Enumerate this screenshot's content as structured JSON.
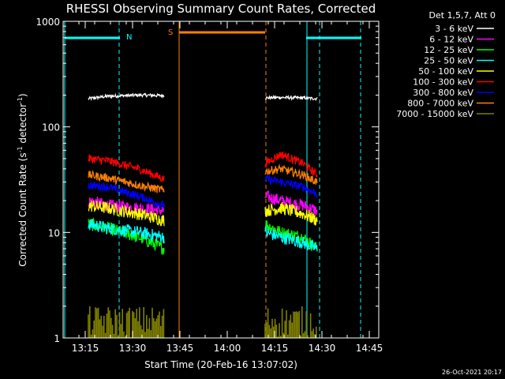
{
  "chart_data": {
    "type": "line",
    "title": "RHESSI Observing Summary Count Rates, Corrected",
    "xlabel": "Start Time (20-Feb-16 13:07:02)",
    "ylabel_main": "Corrected Count Rate (s",
    "ylabel_sup1": "-1",
    "ylabel_mid": " detector",
    "ylabel_sup2": "-1",
    "ylabel_end": ")",
    "yscale": "log",
    "ylim": [
      1,
      1000
    ],
    "yticks": [
      {
        "v": 1,
        "label": "1"
      },
      {
        "v": 10,
        "label": "10"
      },
      {
        "v": 100,
        "label": "100"
      },
      {
        "v": 1000,
        "label": "1000"
      }
    ],
    "xlim_min": [
      788,
      888
    ],
    "xticks": [
      {
        "t": 795,
        "label": "13:15"
      },
      {
        "t": 810,
        "label": "13:30"
      },
      {
        "t": 825,
        "label": "13:45"
      },
      {
        "t": 840,
        "label": "14:00"
      },
      {
        "t": 855,
        "label": "14:15"
      },
      {
        "t": 870,
        "label": "14:30"
      },
      {
        "t": 885,
        "label": "14:45"
      }
    ],
    "legend_title": "Det 1,5,7, Att 0",
    "legend_position": "right",
    "stamp": "26-Oct-2021 20:17",
    "series": [
      {
        "name": "3 - 6 keV",
        "color": "#ffffff",
        "seg1": [
          185,
          195,
          200,
          198
        ],
        "seg2": [
          188,
          190,
          188,
          185
        ]
      },
      {
        "name": "6 - 12 keV",
        "color": "#ff00ff",
        "seg1": [
          20,
          18,
          17,
          16
        ],
        "seg2": [
          22,
          20,
          18,
          16
        ]
      },
      {
        "name": "12 - 25 keV",
        "color": "#00ff00",
        "seg1": [
          12,
          11,
          9,
          7
        ],
        "seg2": [
          12,
          10,
          9,
          7
        ]
      },
      {
        "name": "25 - 50 keV",
        "color": "#00ffff",
        "seg1": [
          12,
          11,
          10,
          9
        ],
        "seg2": [
          10,
          9,
          8,
          7
        ]
      },
      {
        "name": "50 - 100 keV",
        "color": "#ffff00",
        "seg1": [
          18,
          17,
          15,
          13
        ],
        "seg2": [
          16,
          17,
          15,
          13
        ]
      },
      {
        "name": "100 - 300 keV",
        "color": "#ff0000",
        "seg1": [
          50,
          48,
          40,
          32
        ],
        "seg2": [
          45,
          55,
          45,
          35
        ]
      },
      {
        "name": "300 - 800 keV",
        "color": "#0000ff",
        "seg1": [
          28,
          27,
          22,
          18
        ],
        "seg2": [
          32,
          30,
          27,
          23
        ]
      },
      {
        "name": "800 - 7000 keV",
        "color": "#ff8000",
        "seg1": [
          35,
          33,
          28,
          25
        ],
        "seg2": [
          38,
          40,
          35,
          30
        ]
      },
      {
        "name": "7000 - 15000 keV",
        "color": "#808000",
        "seg1": [
          2,
          2,
          2,
          2
        ],
        "seg2": [
          2,
          2,
          2,
          2
        ]
      }
    ],
    "segment_times": {
      "seg1": [
        796,
        802,
        812,
        820
      ],
      "seg2": [
        852,
        857,
        864,
        868.5
      ]
    },
    "flags": [
      {
        "label": "N",
        "color": "#00ffff"
      },
      {
        "label": "S",
        "color": "#ff8000"
      }
    ]
  }
}
